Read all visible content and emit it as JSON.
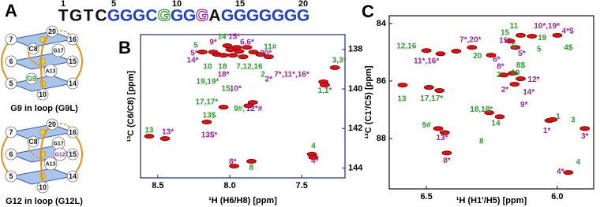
{
  "panel_a": {
    "label": "A",
    "sequence": {
      "numbers": [
        1,
        5,
        10,
        15,
        20
      ],
      "letters": [
        {
          "letter": "T",
          "color": "#111111"
        },
        {
          "letter": "G",
          "color": "#111111"
        },
        {
          "letter": "T",
          "color": "#111111"
        },
        {
          "letter": "C",
          "color": "#111111"
        },
        {
          "letter": "G",
          "color": "#1f3fd0"
        },
        {
          "letter": "G",
          "color": "#1f3fd0"
        },
        {
          "letter": "G",
          "color": "#1f3fd0"
        },
        {
          "letter": "C",
          "color": "#1f3fd0"
        },
        {
          "letter": "G",
          "color": "#2e9a2e",
          "outline": true
        },
        {
          "letter": "G",
          "color": "#1f3fd0"
        },
        {
          "letter": "G",
          "color": "#1f3fd0"
        },
        {
          "letter": "G",
          "color": "#9c1f9c",
          "outline": true
        },
        {
          "letter": "A",
          "color": "#111111"
        },
        {
          "letter": "G",
          "color": "#1f3fd0"
        },
        {
          "letter": "G",
          "color": "#1f3fd0"
        },
        {
          "letter": "G",
          "color": "#1f3fd0"
        },
        {
          "letter": "G",
          "color": "#1f3fd0"
        },
        {
          "letter": "G",
          "color": "#1f3fd0"
        },
        {
          "letter": "G",
          "color": "#1f3fd0"
        },
        {
          "letter": "G",
          "color": "#1f3fd0"
        }
      ]
    },
    "diagrams": [
      {
        "caption": "G9 in loop (G9L)",
        "nodes": [
          {
            "label": "20",
            "color": "#111111"
          },
          {
            "label": "7",
            "color": "#111111"
          },
          {
            "label": "16",
            "color": "#111111"
          },
          {
            "label": "C8",
            "color": "#111111"
          },
          {
            "label": "G17",
            "color": "#111111"
          },
          {
            "label": "6",
            "color": "#111111"
          },
          {
            "label": "15",
            "color": "#111111"
          },
          {
            "label": "A13",
            "color": "#111111"
          },
          {
            "label": "G9",
            "color": "#2e9a2e"
          },
          {
            "label": "5",
            "color": "#111111"
          },
          {
            "label": "10",
            "color": "#111111"
          },
          {
            "label": "14",
            "color": "#111111"
          }
        ]
      },
      {
        "caption": "G12 in loop (G12L)",
        "nodes": [
          {
            "label": "20",
            "color": "#111111"
          },
          {
            "label": "7",
            "color": "#111111"
          },
          {
            "label": "16",
            "color": "#111111"
          },
          {
            "label": "C8",
            "color": "#111111"
          },
          {
            "label": "G17",
            "color": "#111111"
          },
          {
            "label": "6",
            "color": "#111111"
          },
          {
            "label": "15",
            "color": "#111111"
          },
          {
            "label": "A13",
            "color": "#111111"
          },
          {
            "label": "G12",
            "color": "#9c1f9c"
          },
          {
            "label": "5",
            "color": "#111111"
          },
          {
            "label": "10",
            "color": "#111111"
          },
          {
            "label": "14",
            "color": "#111111"
          }
        ]
      }
    ]
  },
  "chart_data": [
    {
      "type": "scatter",
      "panel_label": "B",
      "color": "#e01010",
      "frame_color": "#1a2a80",
      "yaxis_side": "right",
      "x_label": "¹H (H6/H8) [ppm]",
      "y_label": "¹³C (C6/C8) [ppm]",
      "xlim": [
        8.62,
        7.2
      ],
      "ylim": [
        137.25,
        144.5
      ],
      "xticks": [
        8.5,
        {
          "value": 8,
          "label": "8.0"
        },
        7.5
      ],
      "yticks": [
        138,
        140,
        142,
        144
      ],
      "x": [
        8.56,
        8.45,
        8.16,
        8.044,
        7.84,
        7.87,
        8.088,
        8.044,
        7.995,
        7.935,
        7.978,
        7.907,
        7.836,
        7.787,
        7.951,
        8.017,
        7.88,
        7.73,
        8.19,
        8.115,
        7.35,
        7.34,
        7.27,
        7.43,
        7.42,
        7.85,
        7.97
      ],
      "values": [
        142.39,
        142.51,
        141.67,
        140.92,
        140.68,
        140.85,
        138.25,
        138.29,
        138.01,
        138.09,
        138.29,
        138.37,
        138.13,
        138.25,
        137.89,
        137.81,
        137.89,
        138.37,
        138.13,
        138.13,
        139.64,
        139.8,
        138.92,
        143.3,
        143.46,
        143.66,
        143.9
      ],
      "annotations": [
        {
          "text": "14",
          "x": 8.055,
          "y": 137.37,
          "color": "#2e9a2e"
        },
        {
          "text": "15*",
          "x": 7.97,
          "y": 137.37,
          "color": "#9c1f9c"
        },
        {
          "text": "9*",
          "x": 8.115,
          "y": 137.65,
          "color": "#9c1f9c"
        },
        {
          "text": "6,6*",
          "x": 7.88,
          "y": 137.65,
          "color": "#9c1f9c"
        },
        {
          "text": "11#",
          "x": 7.72,
          "y": 137.89,
          "color": "#2e9a2e"
        },
        {
          "text": "5",
          "x": 8.236,
          "y": 137.81,
          "color": "#2e9a2e"
        },
        {
          "text": "5*",
          "x": 8.247,
          "y": 138.21,
          "color": "#9c1f9c"
        },
        {
          "text": "20*",
          "x": 7.75,
          "y": 138.21,
          "color": "#9c1f9c"
        },
        {
          "text": "14*",
          "x": 8.258,
          "y": 138.56,
          "color": "#9c1f9c"
        },
        {
          "text": "10",
          "x": 8.154,
          "y": 138.88,
          "color": "#2e9a2e"
        },
        {
          "text": "18",
          "x": 8.05,
          "y": 138.88,
          "color": "#2e9a2e"
        },
        {
          "text": "7,12,16",
          "x": 7.864,
          "y": 138.88,
          "color": "#2e9a2e"
        },
        {
          "text": "18*",
          "x": 8.044,
          "y": 139.28,
          "color": "#9c1f9c"
        },
        {
          "text": "2",
          "x": 7.77,
          "y": 139.28,
          "color": "#2e9a2e"
        },
        {
          "text": "2*",
          "x": 7.73,
          "y": 139.52,
          "color": "#9c1f9c"
        },
        {
          "text": "7*,11*,16*",
          "x": 7.57,
          "y": 139.28,
          "color": "#9c1f9c"
        },
        {
          "text": "19,19*",
          "x": 8.154,
          "y": 139.64,
          "color": "#2e9a2e"
        },
        {
          "text": "15,",
          "x": 8.02,
          "y": 140.0,
          "color": "#2e9a2e"
        },
        {
          "text": "10*",
          "x": 7.96,
          "y": 140.0,
          "color": "#9c1f9c"
        },
        {
          "text": "17,17*",
          "x": 8.16,
          "y": 140.68,
          "color": "#2e9a2e"
        },
        {
          "text": "9#,",
          "x": 7.935,
          "y": 141.0,
          "color": "#2e9a2e"
        },
        {
          "text": "12*#",
          "x": 7.83,
          "y": 141.0,
          "color": "#9c1f9c"
        },
        {
          "text": "13$",
          "x": 8.143,
          "y": 141.35,
          "color": "#2e9a2e"
        },
        {
          "text": "13$*",
          "x": 8.143,
          "y": 142.35,
          "color": "#9c1f9c"
        },
        {
          "text": "13",
          "x": 8.56,
          "y": 142.11,
          "color": "#2e9a2e"
        },
        {
          "text": "13*",
          "x": 8.43,
          "y": 142.19,
          "color": "#9c1f9c"
        },
        {
          "text": "4",
          "x": 7.42,
          "y": 142.9,
          "color": "#2e9a2e"
        },
        {
          "text": "4*",
          "x": 7.41,
          "y": 143.66,
          "color": "#9c1f9c"
        },
        {
          "text": "8",
          "x": 7.85,
          "y": 144.0,
          "color": "#2e9a2e"
        },
        {
          "text": "8*",
          "x": 7.98,
          "y": 143.7,
          "color": "#9c1f9c"
        },
        {
          "text": "1,1*",
          "x": 7.34,
          "y": 140.1,
          "color": "#2e9a2e"
        },
        {
          "text": "3,3*",
          "x": 7.24,
          "y": 138.56,
          "color": "#2e9a2e"
        }
      ]
    },
    {
      "type": "scatter",
      "panel_label": "C",
      "color": "#e01010",
      "frame_color": "#111111",
      "yaxis_side": "left",
      "x_label": "¹H (H1'/H5) [ppm]",
      "y_label": "¹³C (C1'/C5) [ppm]",
      "xlim": [
        6.642,
        5.861
      ],
      "ylim": [
        83.73,
        89.75
      ],
      "xticks": [
        6.5,
        {
          "value": 6,
          "label": "6.0"
        }
      ],
      "yticks": [
        84,
        86,
        88
      ],
      "x": [
        6.591,
        6.5,
        6.446,
        6.386,
        6.326,
        6.18,
        6.16,
        6.14,
        6.097,
        6.0,
        6.253,
        6.205,
        6.17,
        6.14,
        6.163,
        6.49,
        6.45,
        6.26,
        6.22,
        6.03,
        6.018,
        6.455,
        6.43,
        5.895,
        6.422,
        5.958
      ],
      "values": [
        86.14,
        84.94,
        85.05,
        84.96,
        84.83,
        84.61,
        84.83,
        84.41,
        84.44,
        84.41,
        85.1,
        85.79,
        85.73,
        85.92,
        86.11,
        86.22,
        86.33,
        87.1,
        87.24,
        87.37,
        87.34,
        87.65,
        87.79,
        87.65,
        88.5,
        89.18
      ],
      "annotations": [
        {
          "text": "11",
          "x": 6.166,
          "y": 84.09,
          "color": "#2e9a2e"
        },
        {
          "text": "10*,19*",
          "x": 6.04,
          "y": 84.09,
          "color": "#9c1f9c"
        },
        {
          "text": "4*$",
          "x": 5.96,
          "y": 84.28,
          "color": "#9c1f9c"
        },
        {
          "text": "15",
          "x": 6.2,
          "y": 84.33,
          "color": "#2e9a2e"
        },
        {
          "text": "19",
          "x": 6.058,
          "y": 84.5,
          "color": "#2e9a2e"
        },
        {
          "text": "4$",
          "x": 5.958,
          "y": 84.85,
          "color": "#2e9a2e"
        },
        {
          "text": "7*,20*",
          "x": 6.332,
          "y": 84.58,
          "color": "#9c1f9c"
        },
        {
          "text": "15*",
          "x": 6.2,
          "y": 84.6,
          "color": "#9c1f9c"
        },
        {
          "text": "6",
          "x": 6.166,
          "y": 84.8,
          "color": "#2e9a2e"
        },
        {
          "text": "5",
          "x": 6.07,
          "y": 84.9,
          "color": "#2e9a2e"
        },
        {
          "text": "12,16",
          "x": 6.576,
          "y": 84.8,
          "color": "#2e9a2e"
        },
        {
          "text": "20",
          "x": 6.305,
          "y": 85.13,
          "color": "#2e9a2e"
        },
        {
          "text": "11*,16*",
          "x": 6.5,
          "y": 85.32,
          "color": "#9c1f9c"
        },
        {
          "text": "6*",
          "x": 6.232,
          "y": 85.26,
          "color": "#9c1f9c"
        },
        {
          "text": "5*",
          "x": 6.136,
          "y": 85.05,
          "color": "#9c1f9c"
        },
        {
          "text": "8*",
          "x": 6.217,
          "y": 85.51,
          "color": "#9c1f9c"
        },
        {
          "text": "8$",
          "x": 6.14,
          "y": 85.46,
          "color": "#2e9a2e"
        },
        {
          "text": "2",
          "x": 6.223,
          "y": 85.79,
          "color": "#2e9a2e"
        },
        {
          "text": "10",
          "x": 6.16,
          "y": 85.73,
          "color": "#2e9a2e"
        },
        {
          "text": "2*",
          "x": 6.2,
          "y": 86.31,
          "color": "#9c1f9c"
        },
        {
          "text": "12*",
          "x": 6.09,
          "y": 85.95,
          "color": "#9c1f9c"
        },
        {
          "text": "14*",
          "x": 6.109,
          "y": 86.39,
          "color": "#9c1f9c"
        },
        {
          "text": "17,17*",
          "x": 6.48,
          "y": 86.61,
          "color": "#2e9a2e"
        },
        {
          "text": "13",
          "x": 6.594,
          "y": 86.63,
          "color": "#2e9a2e"
        },
        {
          "text": "9*",
          "x": 6.127,
          "y": 86.83,
          "color": "#9c1f9c"
        },
        {
          "text": "18,18*",
          "x": 6.29,
          "y": 86.99,
          "color": "#2e9a2e"
        },
        {
          "text": "14",
          "x": 6.235,
          "y": 87.48,
          "color": "#2e9a2e"
        },
        {
          "text": "1",
          "x": 5.997,
          "y": 87.24,
          "color": "#2e9a2e"
        },
        {
          "text": "1*",
          "x": 6.04,
          "y": 87.73,
          "color": "#9c1f9c"
        },
        {
          "text": "3",
          "x": 5.94,
          "y": 87.37,
          "color": "#2e9a2e"
        },
        {
          "text": "3*",
          "x": 5.895,
          "y": 87.92,
          "color": "#9c1f9c"
        },
        {
          "text": "9#",
          "x": 6.5,
          "y": 87.54,
          "color": "#2e9a2e"
        },
        {
          "text": "13*",
          "x": 6.44,
          "y": 87.98,
          "color": "#9c1f9c"
        },
        {
          "text": "8",
          "x": 6.29,
          "y": 88.11,
          "color": "#2e9a2e"
        },
        {
          "text": "8*",
          "x": 6.422,
          "y": 88.77,
          "color": "#9c1f9c"
        },
        {
          "text": "4",
          "x": 5.92,
          "y": 88.83,
          "color": "#2e9a2e"
        },
        {
          "text": "4*",
          "x": 5.988,
          "y": 89.16,
          "color": "#9c1f9c"
        }
      ]
    }
  ]
}
